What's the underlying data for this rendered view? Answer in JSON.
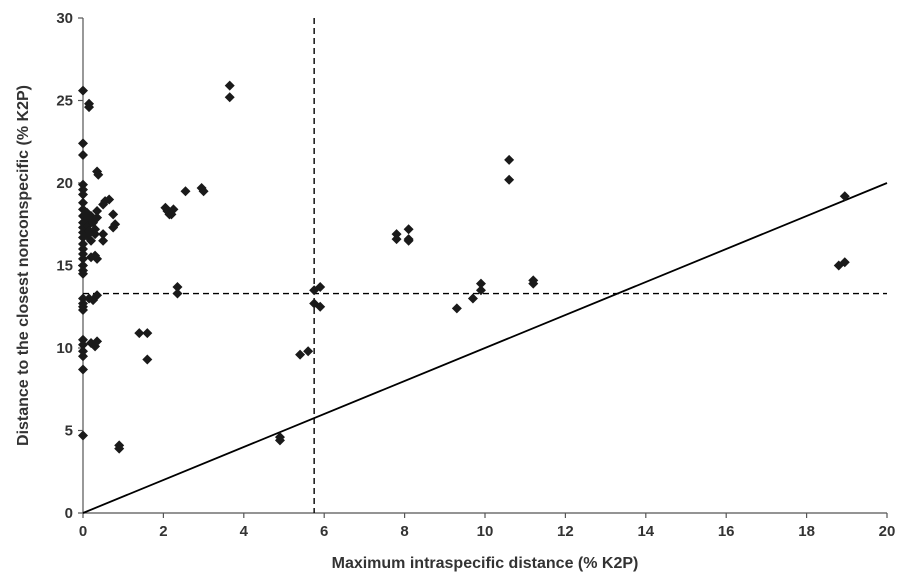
{
  "chart_data": {
    "type": "scatter",
    "title": "",
    "xlabel": "Maximum intraspecific distance (% K2P)",
    "ylabel": "Distance to the closest nonconspecific (% K2P)",
    "xlim": [
      0,
      20
    ],
    "ylim": [
      0,
      30
    ],
    "xticks": [
      0,
      2,
      4,
      6,
      8,
      10,
      12,
      14,
      16,
      18,
      20
    ],
    "yticks": [
      0,
      5,
      10,
      15,
      20,
      25,
      30
    ],
    "grid": false,
    "legend": "none",
    "marker": "diamond",
    "marker_color": "#1a1a1a",
    "line_color": "#000000",
    "reference_lines": {
      "identity_line": {
        "from": [
          0,
          0
        ],
        "to": [
          20,
          20
        ],
        "style": "solid"
      },
      "vertical_threshold": {
        "x": 5.75,
        "style": "dashed"
      },
      "horizontal_threshold": {
        "y": 13.3,
        "style": "dashed"
      }
    },
    "points": [
      [
        0.0,
        25.6
      ],
      [
        0.0,
        22.4
      ],
      [
        0.0,
        21.7
      ],
      [
        0.0,
        19.9
      ],
      [
        0.0,
        19.6
      ],
      [
        0.0,
        19.3
      ],
      [
        0.0,
        18.8
      ],
      [
        0.0,
        18.4
      ],
      [
        0.0,
        18.0
      ],
      [
        0.0,
        17.6
      ],
      [
        0.0,
        17.3
      ],
      [
        0.0,
        17.0
      ],
      [
        0.0,
        16.7
      ],
      [
        0.0,
        16.3
      ],
      [
        0.0,
        16.0
      ],
      [
        0.0,
        15.7
      ],
      [
        0.0,
        15.4
      ],
      [
        0.0,
        15.0
      ],
      [
        0.0,
        14.7
      ],
      [
        0.0,
        14.5
      ],
      [
        0.0,
        13.0
      ],
      [
        0.0,
        12.7
      ],
      [
        0.0,
        12.5
      ],
      [
        0.0,
        12.3
      ],
      [
        0.0,
        10.5
      ],
      [
        0.0,
        10.2
      ],
      [
        0.0,
        9.8
      ],
      [
        0.0,
        9.5
      ],
      [
        0.0,
        8.7
      ],
      [
        0.0,
        4.7
      ],
      [
        0.15,
        24.8
      ],
      [
        0.15,
        24.6
      ],
      [
        0.1,
        18.2
      ],
      [
        0.1,
        17.8
      ],
      [
        0.12,
        17.4
      ],
      [
        0.15,
        17.1
      ],
      [
        0.1,
        16.8
      ],
      [
        0.2,
        16.5
      ],
      [
        0.2,
        18.0
      ],
      [
        0.25,
        17.6
      ],
      [
        0.3,
        17.2
      ],
      [
        0.3,
        16.9
      ],
      [
        0.35,
        18.3
      ],
      [
        0.35,
        17.9
      ],
      [
        0.3,
        15.6
      ],
      [
        0.35,
        15.4
      ],
      [
        0.2,
        15.5
      ],
      [
        0.15,
        13.0
      ],
      [
        0.25,
        12.9
      ],
      [
        0.35,
        13.2
      ],
      [
        0.2,
        10.3
      ],
      [
        0.3,
        10.1
      ],
      [
        0.35,
        10.4
      ],
      [
        0.35,
        20.7
      ],
      [
        0.38,
        20.5
      ],
      [
        0.5,
        16.5
      ],
      [
        0.5,
        16.9
      ],
      [
        0.5,
        18.7
      ],
      [
        0.55,
        18.9
      ],
      [
        0.65,
        19.0
      ],
      [
        0.75,
        18.1
      ],
      [
        0.8,
        17.5
      ],
      [
        0.75,
        17.3
      ],
      [
        0.9,
        4.1
      ],
      [
        0.9,
        3.9
      ],
      [
        1.4,
        10.9
      ],
      [
        1.6,
        10.9
      ],
      [
        1.6,
        9.3
      ],
      [
        2.05,
        18.5
      ],
      [
        2.1,
        18.3
      ],
      [
        2.15,
        18.1
      ],
      [
        2.25,
        18.4
      ],
      [
        2.2,
        18.1
      ],
      [
        2.35,
        13.7
      ],
      [
        2.35,
        13.3
      ],
      [
        2.55,
        19.5
      ],
      [
        2.95,
        19.7
      ],
      [
        3.0,
        19.5
      ],
      [
        3.65,
        25.9
      ],
      [
        3.65,
        25.2
      ],
      [
        4.9,
        4.6
      ],
      [
        4.9,
        4.4
      ],
      [
        5.4,
        9.6
      ],
      [
        5.6,
        9.8
      ],
      [
        5.75,
        13.5
      ],
      [
        5.75,
        12.7
      ],
      [
        5.9,
        13.7
      ],
      [
        5.9,
        12.5
      ],
      [
        7.8,
        16.9
      ],
      [
        7.8,
        16.6
      ],
      [
        8.1,
        17.2
      ],
      [
        8.1,
        16.6
      ],
      [
        8.1,
        16.5
      ],
      [
        9.3,
        12.4
      ],
      [
        9.7,
        13.0
      ],
      [
        9.9,
        13.9
      ],
      [
        9.9,
        13.5
      ],
      [
        10.6,
        21.4
      ],
      [
        10.6,
        20.2
      ],
      [
        11.2,
        14.1
      ],
      [
        11.2,
        13.9
      ],
      [
        18.8,
        15.0
      ],
      [
        18.95,
        15.2
      ],
      [
        18.95,
        19.2
      ]
    ]
  }
}
